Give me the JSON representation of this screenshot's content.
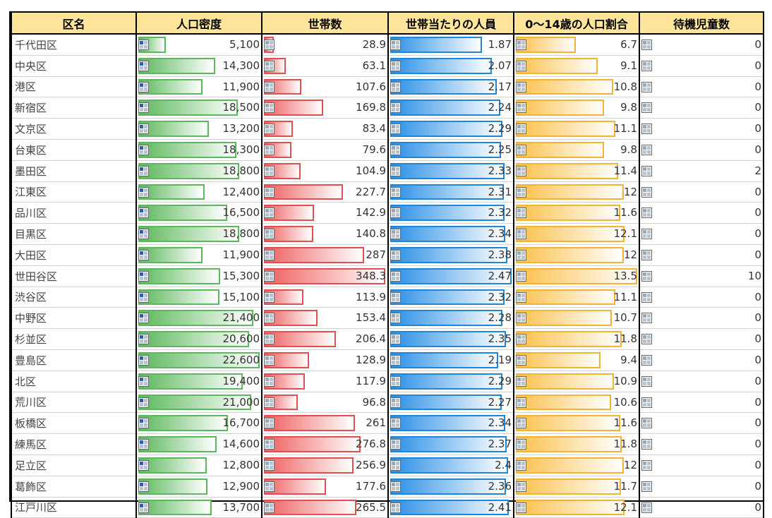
{
  "headers": [
    "区名",
    "人口密度",
    "世帯数",
    "世帯当たりの人員",
    "0〜14歳の人口割合",
    "待機児童数"
  ],
  "rows": [
    [
      "千代田区",
      "5,100",
      "28.9",
      "1.87",
      "6.7",
      "0"
    ],
    [
      "中央区",
      "14,300",
      "63.1",
      "2.07",
      "9.1",
      "0"
    ],
    [
      "港区",
      "11,900",
      "107.6",
      "2.17",
      "10.8",
      "0"
    ],
    [
      "新宿区",
      "18,500",
      "169.8",
      "2.24",
      "9.8",
      "0"
    ],
    [
      "文京区",
      "13,200",
      "83.4",
      "2.29",
      "11.1",
      "0"
    ],
    [
      "台東区",
      "18,300",
      "79.6",
      "2.25",
      "9.8",
      "0"
    ],
    [
      "墨田区",
      "18,800",
      "104.9",
      "2.33",
      "11.4",
      "2"
    ],
    [
      "江東区",
      "12,400",
      "227.7",
      "2.31",
      "12",
      "0"
    ],
    [
      "品川区",
      "16,500",
      "142.9",
      "2.32",
      "11.6",
      "0"
    ],
    [
      "目黒区",
      "18,800",
      "140.8",
      "2.34",
      "12.1",
      "0"
    ],
    [
      "大田区",
      "11,900",
      "287",
      "2.38",
      "12",
      "0"
    ],
    [
      "世田谷区",
      "15,300",
      "348.3",
      "2.47",
      "13.5",
      "10"
    ],
    [
      "渋谷区",
      "15,100",
      "113.9",
      "2.32",
      "11.1",
      "0"
    ],
    [
      "中野区",
      "21,400",
      "153.4",
      "2.28",
      "10.7",
      "0"
    ],
    [
      "杉並区",
      "20,600",
      "206.4",
      "2.35",
      "11.8",
      "0"
    ],
    [
      "豊島区",
      "22,600",
      "128.9",
      "2.19",
      "9.4",
      "0"
    ],
    [
      "北区",
      "19,400",
      "117.9",
      "2.29",
      "10.9",
      "0"
    ],
    [
      "荒川区",
      "21,000",
      "96.8",
      "2.27",
      "10.6",
      "0"
    ],
    [
      "板橋区",
      "16,700",
      "261",
      "2.34",
      "11.6",
      "0"
    ],
    [
      "練馬区",
      "14,600",
      "276.8",
      "2.37",
      "11.8",
      "0"
    ],
    [
      "足立区",
      "12,800",
      "256.9",
      "2.4",
      "12",
      "0"
    ],
    [
      "葛飾区",
      "12,900",
      "177.6",
      "2.36",
      "11.7",
      "0"
    ],
    [
      "江戸川区",
      "13,700",
      "265.5",
      "2.41",
      "12.1",
      "0"
    ]
  ],
  "bar_colors": {
    "density": "#5cb85c",
    "households": "#e05050",
    "persons": "#1f86d8",
    "children": "#fbc04a"
  },
  "bar_max": {
    "density": 22600,
    "households": 348.3,
    "persons": 2.47,
    "children": 13.5
  },
  "icons": {
    "cell_icon": "grid-icon"
  }
}
